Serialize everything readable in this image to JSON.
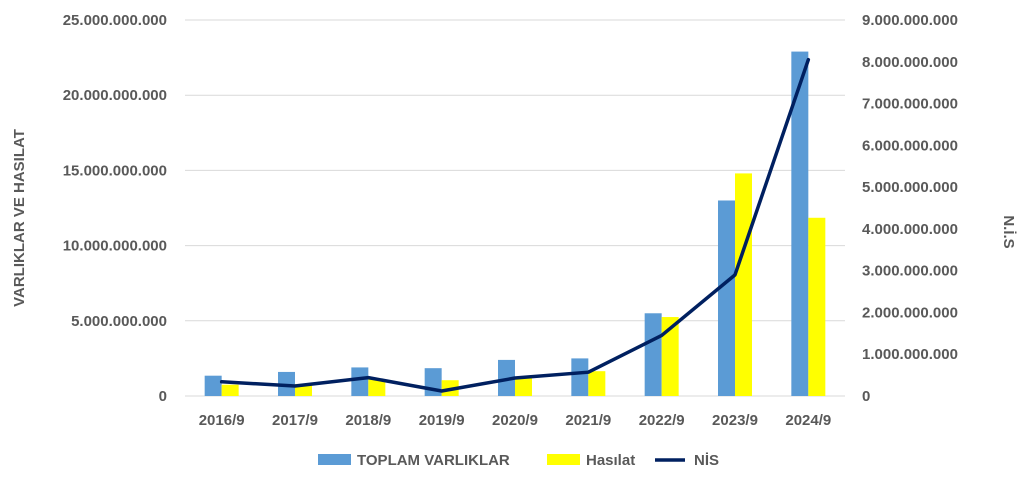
{
  "chart_data": {
    "type": "bar",
    "categories": [
      "2016/9",
      "2017/9",
      "2018/9",
      "2019/9",
      "2020/9",
      "2021/9",
      "2022/9",
      "2023/9",
      "2024/9"
    ],
    "series": [
      {
        "name": "TOPLAM VARLIKLAR",
        "type": "bar",
        "axis": "left",
        "color": "#5B9BD5",
        "values": [
          1350000000,
          1600000000,
          1900000000,
          1850000000,
          2400000000,
          2500000000,
          5500000000,
          13000000000,
          22900000000
        ]
      },
      {
        "name": "Hasılat",
        "type": "bar",
        "axis": "left",
        "color": "#FFFF00",
        "values": [
          750000000,
          800000000,
          1100000000,
          1050000000,
          1250000000,
          1650000000,
          5250000000,
          14800000000,
          11850000000
        ]
      },
      {
        "name": "NİS",
        "type": "line",
        "axis": "right",
        "color": "#002060",
        "values": [
          340000000,
          240000000,
          440000000,
          120000000,
          430000000,
          570000000,
          1450000000,
          2900000000,
          8050000000
        ]
      }
    ],
    "y_left": {
      "label": "VARLIKLAR VE HASILAT",
      "range": [
        0,
        25000000000
      ],
      "ticks": [
        0,
        5000000000,
        10000000000,
        15000000000,
        20000000000,
        25000000000
      ],
      "tick_labels": [
        "0",
        "5.000.000.000",
        "10.000.000.000",
        "15.000.000.000",
        "20.000.000.000",
        "25.000.000.000"
      ]
    },
    "y_right": {
      "label": "N.İ.S",
      "range": [
        0,
        9000000000
      ],
      "ticks": [
        0,
        1000000000,
        2000000000,
        3000000000,
        4000000000,
        5000000000,
        6000000000,
        7000000000,
        8000000000,
        9000000000
      ],
      "tick_labels": [
        "0",
        "1.000.000.000",
        "2.000.000.000",
        "3.000.000.000",
        "4.000.000.000",
        "5.000.000.000",
        "6.000.000.000",
        "7.000.000.000",
        "8.000.000.000",
        "9.000.000.000"
      ]
    },
    "grid": true,
    "legend_position": "bottom",
    "colors": {
      "grid": "#D9D9D9",
      "text": "#595959"
    }
  }
}
